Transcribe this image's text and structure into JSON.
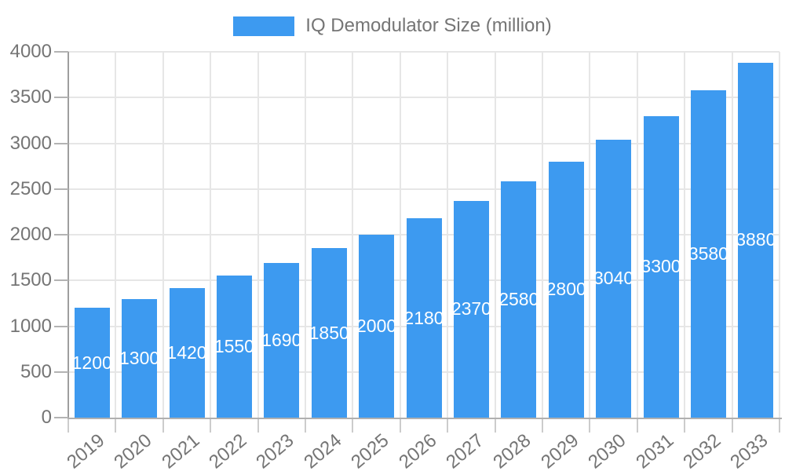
{
  "chart_data": {
    "type": "bar",
    "title": "IQ Demodulator Size (million)",
    "categories": [
      "2019",
      "2020",
      "2021",
      "2022",
      "2023",
      "2024",
      "2025",
      "2026",
      "2027",
      "2028",
      "2029",
      "2030",
      "2031",
      "2032",
      "2033"
    ],
    "values": [
      1200,
      1300,
      1420,
      1550,
      1690,
      1850,
      2000,
      2180,
      2370,
      2580,
      2800,
      3040,
      3300,
      3580,
      3880
    ],
    "xlabel": "",
    "ylabel": "",
    "ylim": [
      0,
      4000
    ],
    "y_ticks": [
      0,
      500,
      1000,
      1500,
      2000,
      2500,
      3000,
      3500,
      4000
    ],
    "legend_position": "top-center",
    "grid": true,
    "value_labels": "inside-center-white",
    "colors": {
      "bar": "#3D9AF0",
      "value_label": "#ffffff",
      "axis_text": "#757575",
      "gridline": "#e6e6e6",
      "y_axis_line": "#9e9e9e",
      "baseline": "#b0b0b0",
      "y_tick": "#b3b3b3",
      "x_tick": "#cccccc",
      "background": "#ffffff"
    }
  }
}
